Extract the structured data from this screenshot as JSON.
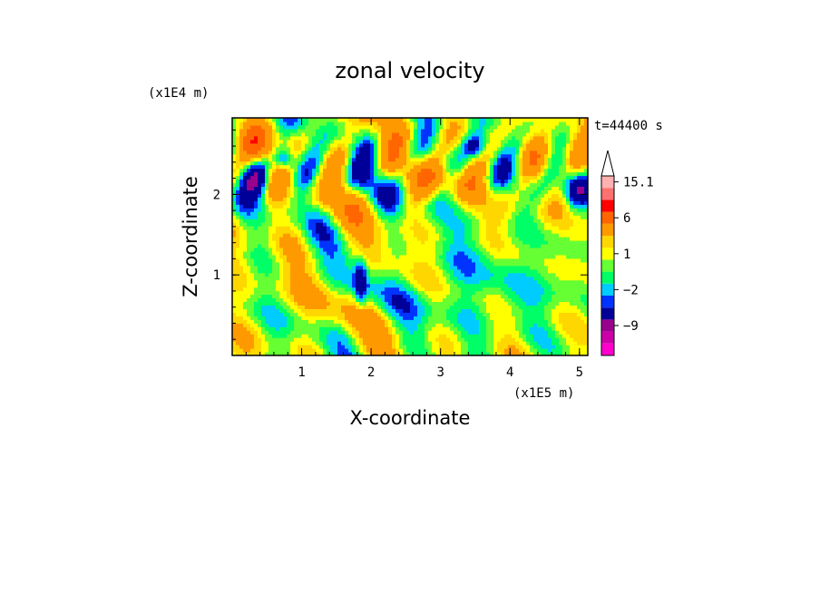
{
  "chart_data": {
    "type": "heatmap",
    "title": "zonal velocity",
    "xlabel": "X-coordinate",
    "ylabel": "Z-coordinate",
    "x_scale_label": "(x1E5 m)",
    "y_scale_label": "(x1E4 m)",
    "time_label": "t=44400 s",
    "xlim": [
      0,
      5.12
    ],
    "ylim": [
      0,
      2.95
    ],
    "x_ticks": [
      1,
      2,
      3,
      4,
      5
    ],
    "y_ticks": [
      1,
      2
    ],
    "x_tick_labels": [
      "1",
      "2",
      "3",
      "4",
      "5"
    ],
    "y_tick_labels": [
      "1",
      "2"
    ],
    "colorbar": {
      "levels": [
        -15,
        -12,
        -9,
        -6,
        -3,
        -2,
        -1,
        0,
        1,
        2,
        3,
        6,
        9,
        12,
        15.1
      ],
      "colors": [
        "#ff00cc",
        "#cc00aa",
        "#99008c",
        "#000099",
        "#0033ff",
        "#00ccff",
        "#00ff66",
        "#66ff33",
        "#ffff00",
        "#ffd700",
        "#ff9900",
        "#ff6600",
        "#ff0000",
        "#ff7070",
        "#ffb0b0"
      ],
      "labels": [
        {
          "value": 15.1,
          "text": "15.1"
        },
        {
          "value": 6,
          "text": "6"
        },
        {
          "value": 1,
          "text": "1"
        },
        {
          "value": -2,
          "text": "−2"
        },
        {
          "value": -9,
          "text": "−9"
        }
      ]
    }
  }
}
